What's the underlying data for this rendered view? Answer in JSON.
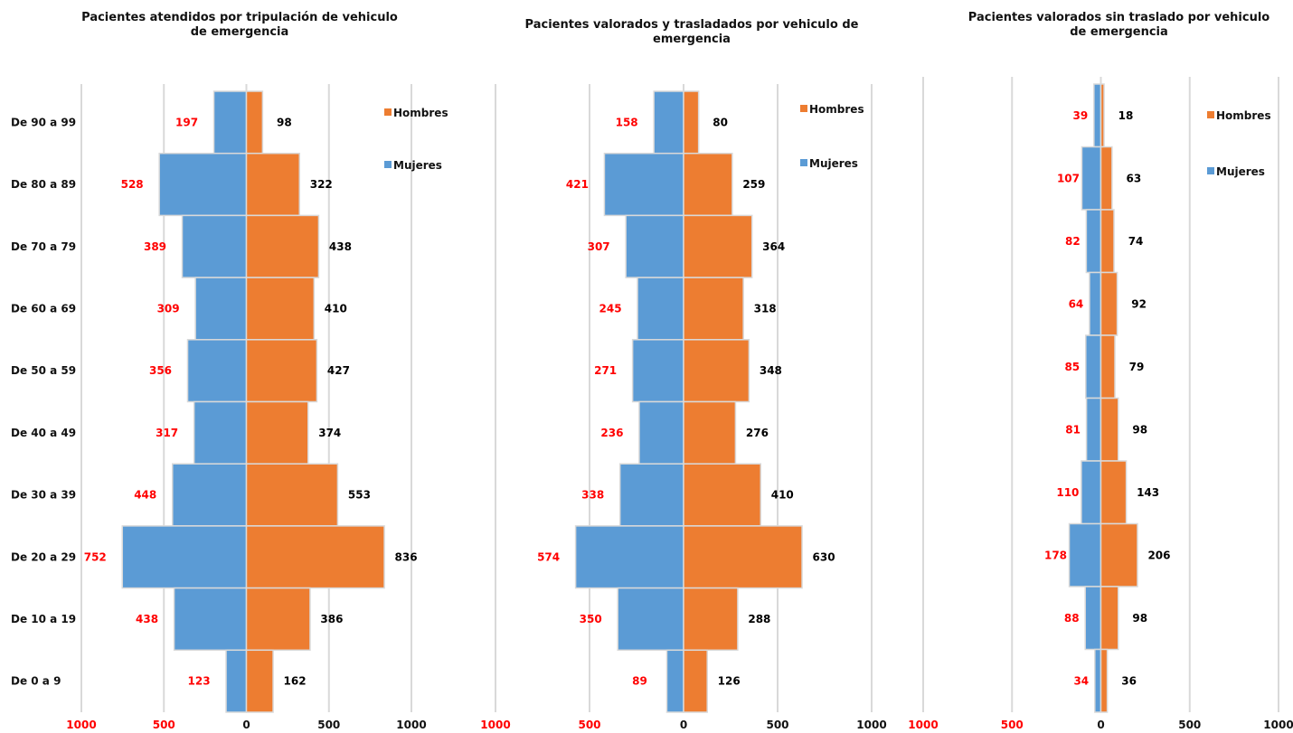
{
  "colors": {
    "men": "#ED7D31",
    "women": "#5B9BD5",
    "women_label": "#FF0000",
    "men_label": "#000000",
    "grid": "#D9D9D9",
    "bar_edge": "#D9D9D9"
  },
  "chart_data": [
    {
      "type": "bar",
      "orientation": "horizontal-pyramid",
      "title": "Pacientes atendidos por tripulación de vehiculo de emergencia",
      "categories": [
        "De 90 a 99",
        "De 80 a 89",
        "De 70 a 79",
        "De 60 a 69",
        "De 50 a 59",
        "De 40 a 49",
        "De 30 a 39",
        "De 20 a 29",
        "De 10 a 19",
        "De 0 a 9"
      ],
      "series": [
        {
          "name": "Hombres",
          "values": [
            98,
            322,
            438,
            410,
            427,
            374,
            553,
            836,
            386,
            162
          ]
        },
        {
          "name": "Mujeres",
          "values": [
            197,
            528,
            389,
            309,
            356,
            317,
            448,
            752,
            438,
            123
          ]
        }
      ],
      "xlim": [
        -1000,
        1000
      ],
      "xticks": [
        "1000",
        "500",
        "0",
        "500",
        "1000"
      ],
      "grid": true,
      "legend": "top-right"
    },
    {
      "type": "bar",
      "orientation": "horizontal-pyramid",
      "title": "Pacientes valorados y trasladados por vehiculo de emergencia",
      "categories": [
        "De 90 a 99",
        "De 80 a 89",
        "De 70 a 79",
        "De 60 a 69",
        "De 50 a 59",
        "De 40 a 49",
        "De 30 a 39",
        "De 20 a 29",
        "De 10 a 19",
        "De 0 a 9"
      ],
      "series": [
        {
          "name": "Hombres",
          "values": [
            80,
            259,
            364,
            318,
            348,
            276,
            410,
            630,
            288,
            126
          ]
        },
        {
          "name": "Mujeres",
          "values": [
            158,
            421,
            307,
            245,
            271,
            236,
            338,
            574,
            350,
            89
          ]
        }
      ],
      "xlim": [
        -1000,
        1000
      ],
      "xticks": [
        "1000",
        "500",
        "0",
        "500",
        "1000"
      ],
      "grid": true,
      "legend": "top-right"
    },
    {
      "type": "bar",
      "orientation": "horizontal-pyramid",
      "title": "Pacientes valorados sin traslado por vehiculo de emergencia",
      "categories": [
        "De 90 a 99",
        "De 80 a 89",
        "De 70 a 79",
        "De 60 a 69",
        "De 50 a 59",
        "De 40 a 49",
        "De 30 a 39",
        "De 20 a 29",
        "De 10 a 19",
        "De 0 a 9"
      ],
      "series": [
        {
          "name": "Hombres",
          "values": [
            18,
            63,
            74,
            92,
            79,
            98,
            143,
            206,
            98,
            36
          ]
        },
        {
          "name": "Mujeres",
          "values": [
            39,
            107,
            82,
            64,
            85,
            81,
            110,
            178,
            88,
            34
          ]
        }
      ],
      "xlim": [
        -1000,
        1000
      ],
      "xticks": [
        "1000",
        "500",
        "0",
        "500",
        "1000"
      ],
      "grid": true,
      "legend": "top-right"
    }
  ]
}
